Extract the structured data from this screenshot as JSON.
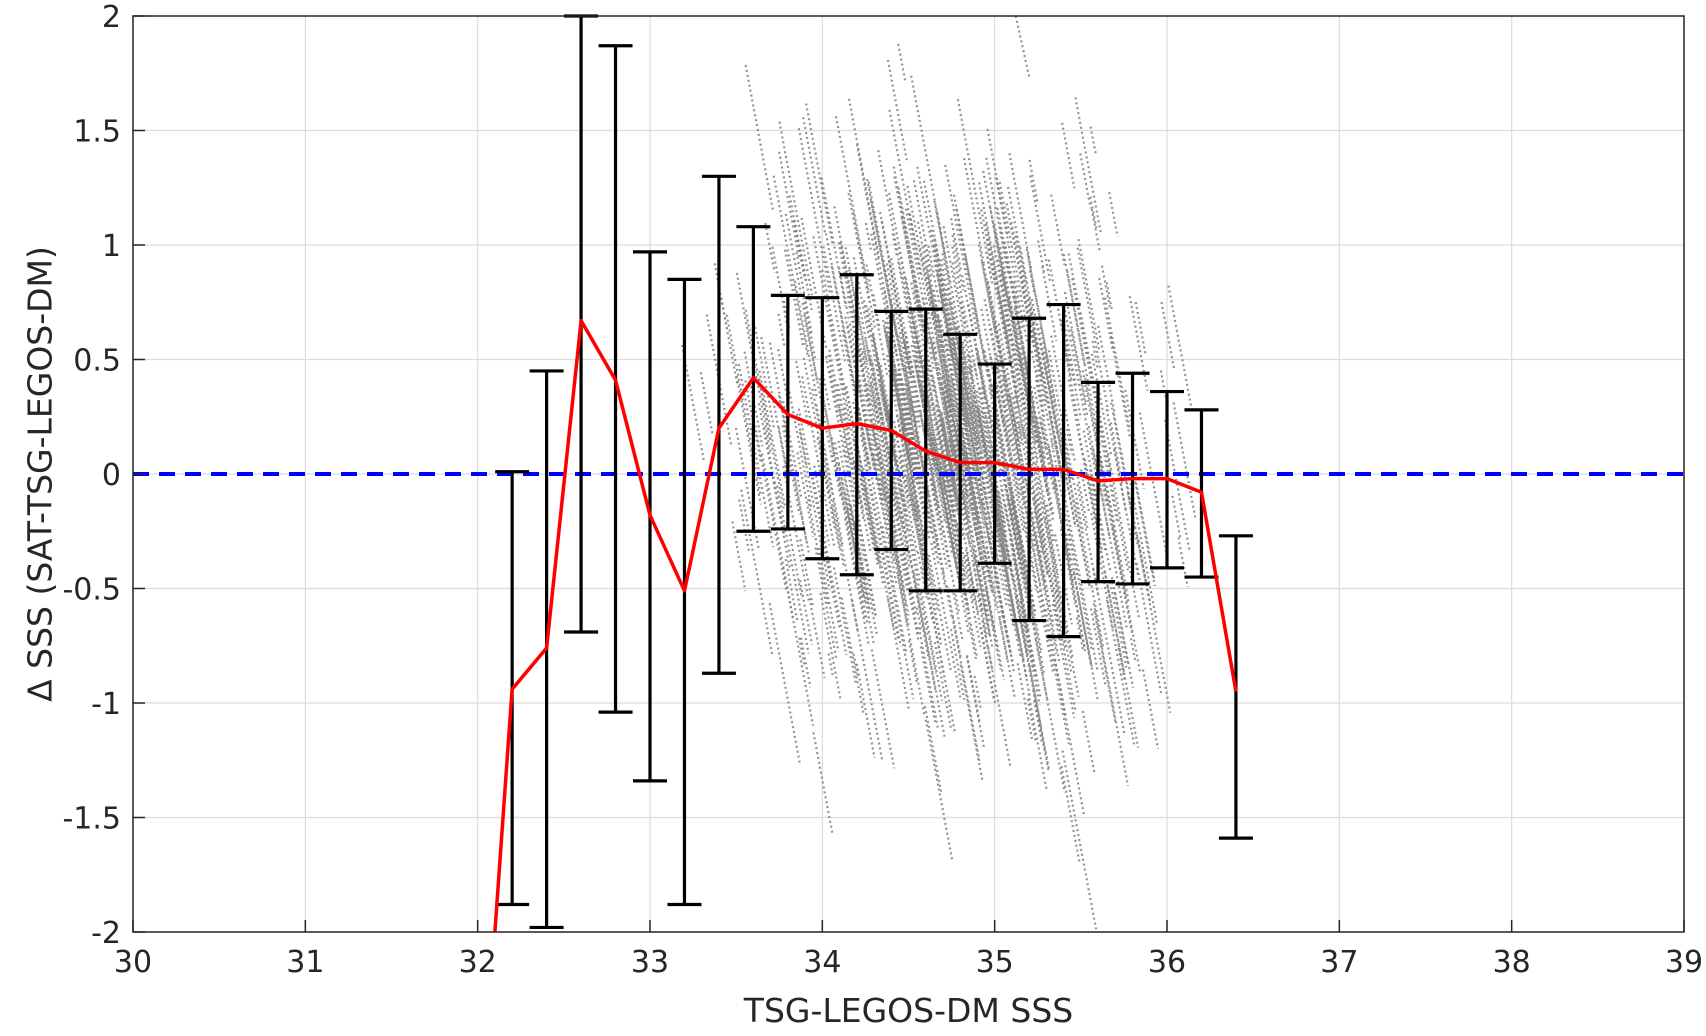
{
  "chart_data": {
    "type": "scatter",
    "title": "",
    "xlabel": "TSG-LEGOS-DM SSS",
    "ylabel": "Δ SSS (SAT-TSG-LEGOS-DM)",
    "xlim": [
      30,
      39
    ],
    "ylim": [
      -2,
      2
    ],
    "xticks": [
      "30",
      "31",
      "32",
      "33",
      "34",
      "35",
      "36",
      "37",
      "38",
      "39"
    ],
    "yticks": [
      "-2",
      "-1.5",
      "-1",
      "-0.5",
      "0",
      "0.5",
      "1",
      "1.5",
      "2"
    ],
    "grid": true,
    "zero_line": {
      "y": 0,
      "color": "#0000ff",
      "style": "dashed"
    },
    "scatter_cloud": {
      "color": "#808080",
      "x_range": [
        32.4,
        36.2
      ],
      "y_range": [
        -2,
        2
      ],
      "note_center_x": 34.8
    },
    "series": [
      {
        "type": "line",
        "color": "#ff0000",
        "x": [
          32.1,
          32.2,
          32.4,
          32.6,
          32.8,
          33.0,
          33.2,
          33.4,
          33.6,
          33.8,
          34.0,
          34.2,
          34.4,
          34.6,
          34.8,
          35.0,
          35.2,
          35.4,
          35.6,
          35.8,
          36.0,
          36.2,
          36.4
        ],
        "y": [
          -2.0,
          -0.94,
          -0.76,
          0.67,
          0.41,
          -0.18,
          -0.51,
          0.2,
          0.42,
          0.26,
          0.2,
          0.22,
          0.19,
          0.1,
          0.05,
          0.05,
          0.02,
          0.02,
          -0.03,
          -0.02,
          -0.02,
          -0.08,
          -0.95
        ]
      }
    ],
    "errorbars": {
      "color": "#000000",
      "x": [
        32.2,
        32.4,
        32.6,
        32.8,
        33.0,
        33.2,
        33.4,
        33.6,
        33.8,
        34.0,
        34.2,
        34.4,
        34.6,
        34.8,
        35.0,
        35.2,
        35.4,
        35.6,
        35.8,
        36.0,
        36.2,
        36.4
      ],
      "lower": [
        -1.88,
        -1.98,
        -0.69,
        -1.04,
        -1.34,
        -1.88,
        -0.87,
        -0.25,
        -0.24,
        -0.37,
        -0.44,
        -0.33,
        -0.51,
        -0.51,
        -0.39,
        -0.64,
        -0.71,
        -0.47,
        -0.48,
        -0.41,
        -0.45,
        -1.59
      ],
      "upper": [
        0.01,
        0.45,
        2.0,
        1.87,
        0.97,
        0.85,
        1.3,
        1.08,
        0.78,
        0.77,
        0.87,
        0.71,
        0.72,
        0.61,
        0.48,
        0.68,
        0.74,
        0.4,
        0.44,
        0.36,
        0.28,
        -0.27
      ]
    }
  }
}
